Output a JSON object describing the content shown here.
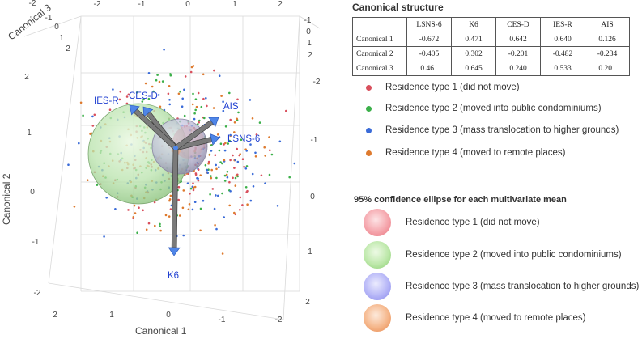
{
  "chart_data": {
    "type": "scatter",
    "subtype": "3d-canonical-biplot",
    "axes": {
      "x": {
        "label": "Canonical 1",
        "ticks": [
          "2",
          "1",
          "0",
          "-1",
          "-2"
        ]
      },
      "y": {
        "label": "Canonical 2",
        "ticks": [
          "-2",
          "-1",
          "0",
          "1",
          "2"
        ]
      },
      "z": {
        "label": "Canonical 3",
        "ticks": [
          "2",
          "1",
          "0",
          "-1",
          "-2"
        ]
      }
    },
    "axis_tick_labels": {
      "top_left": [
        "-2",
        "-1",
        "0",
        "1",
        "2"
      ],
      "top_right": [
        "-2",
        "-1",
        "0",
        "1",
        "2"
      ],
      "top_far_right": [
        "-1",
        "0",
        "1",
        "2"
      ],
      "left_side": [
        "2",
        "1",
        "0",
        "-1",
        "-2"
      ],
      "right_side_mid": [
        "-2",
        "-1",
        "0",
        "1",
        "2"
      ],
      "right_side_bottom": [
        "-2",
        "-1",
        "0",
        "1"
      ],
      "bottom_left": [
        "2",
        "1",
        "0"
      ],
      "bottom": [
        "-1",
        "-2"
      ]
    },
    "vectors": [
      {
        "name": "LSNS-6",
        "canonical": [
          -0.672,
          -0.405,
          0.461
        ]
      },
      {
        "name": "K6",
        "canonical": [
          0.471,
          0.302,
          0.645
        ]
      },
      {
        "name": "CES-D",
        "canonical": [
          0.642,
          -0.201,
          0.24
        ]
      },
      {
        "name": "IES-R",
        "canonical": [
          0.64,
          -0.482,
          0.533
        ]
      },
      {
        "name": "AIS",
        "canonical": [
          0.126,
          -0.234,
          0.201
        ]
      }
    ],
    "groups": [
      {
        "name": "Residence type 1 (did not move)",
        "color": "#d9505d"
      },
      {
        "name": "Residence type 2 (moved into public condominiums)",
        "color": "#3cb04a"
      },
      {
        "name": "Residence type 3 (mass translocation to higher grounds)",
        "color": "#3a6bd8"
      },
      {
        "name": "Residence type 4 (moved to remote places)",
        "color": "#de7a2e"
      }
    ]
  },
  "canonical_structure": {
    "title": "Canonical structure",
    "columns": [
      "LSNS-6",
      "K6",
      "CES-D",
      "IES-R",
      "AIS"
    ],
    "rows": [
      {
        "label": "Canonical 1",
        "values": [
          "-0.672",
          "0.471",
          "0.642",
          "0.640",
          "0.126"
        ]
      },
      {
        "label": "Canonical 2",
        "values": [
          "-0.405",
          "0.302",
          "-0.201",
          "-0.482",
          "-0.234"
        ]
      },
      {
        "label": "Canonical 3",
        "values": [
          "0.461",
          "0.645",
          "0.240",
          "0.533",
          "0.201"
        ]
      }
    ]
  },
  "legend": {
    "items": [
      {
        "label": "Residence type 1 (did not move)",
        "color": "#d9505d"
      },
      {
        "label": "Residence type 2 (moved into public condominiums)",
        "color": "#3cb04a"
      },
      {
        "label": "Residence type 3 (mass translocation to higher grounds)",
        "color": "#3a6bd8"
      },
      {
        "label": "Residence type 4 (moved to remote places)",
        "color": "#de7a2e"
      }
    ]
  },
  "ellipse_legend": {
    "title": "95% confidence ellipse for each multivariate mean",
    "items": [
      {
        "label": "Residence type 1 (did not move)",
        "color": "#f08a93"
      },
      {
        "label": "Residence type 2 (moved into public condominiums)",
        "color": "#9ed98f"
      },
      {
        "label": "Residence type 3 (mass translocation to higher grounds)",
        "color": "#9a9cf2"
      },
      {
        "label": "Residence type 4 (moved to remote places)",
        "color": "#f0a574"
      }
    ]
  }
}
